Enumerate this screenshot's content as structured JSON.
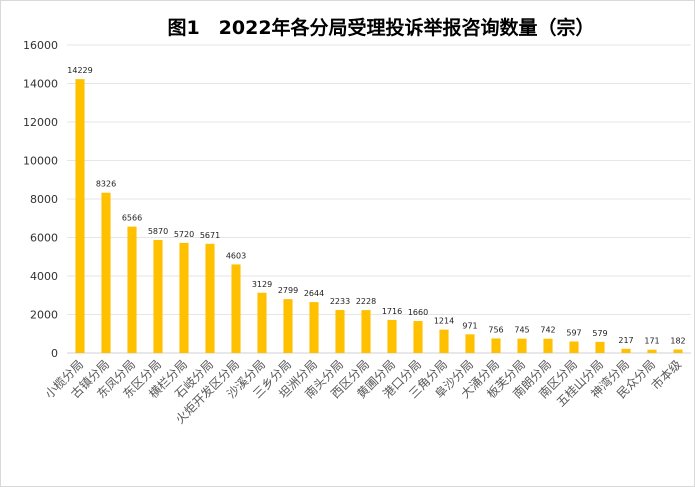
{
  "chart_data": {
    "type": "bar",
    "title": "图1　2022年各分局受理投诉举报咨询数量（宗）",
    "categories": [
      "小榄分局",
      "古镇分局",
      "东凤分局",
      "东区分局",
      "横栏分局",
      "石岐分局",
      "火炬开发区分局",
      "沙溪分局",
      "三乡分局",
      "坦洲分局",
      "南头分局",
      "西区分局",
      "黄圃分局",
      "港口分局",
      "三角分局",
      "阜沙分局",
      "大涌分局",
      "板芙分局",
      "南朗分局",
      "南区分局",
      "五桂山分局",
      "神湾分局",
      "民众分局",
      "市本级"
    ],
    "values": [
      14229,
      8326,
      6566,
      5870,
      5720,
      5671,
      4603,
      3129,
      2799,
      2644,
      2233,
      2228,
      1716,
      1660,
      1214,
      971,
      756,
      745,
      742,
      597,
      579,
      217,
      171,
      182
    ],
    "ylim": [
      0,
      16000
    ],
    "yticks": [
      0,
      2000,
      4000,
      6000,
      8000,
      10000,
      12000,
      14000,
      16000
    ],
    "grid": true,
    "legend": "none",
    "bar_color": "#FFC000"
  }
}
